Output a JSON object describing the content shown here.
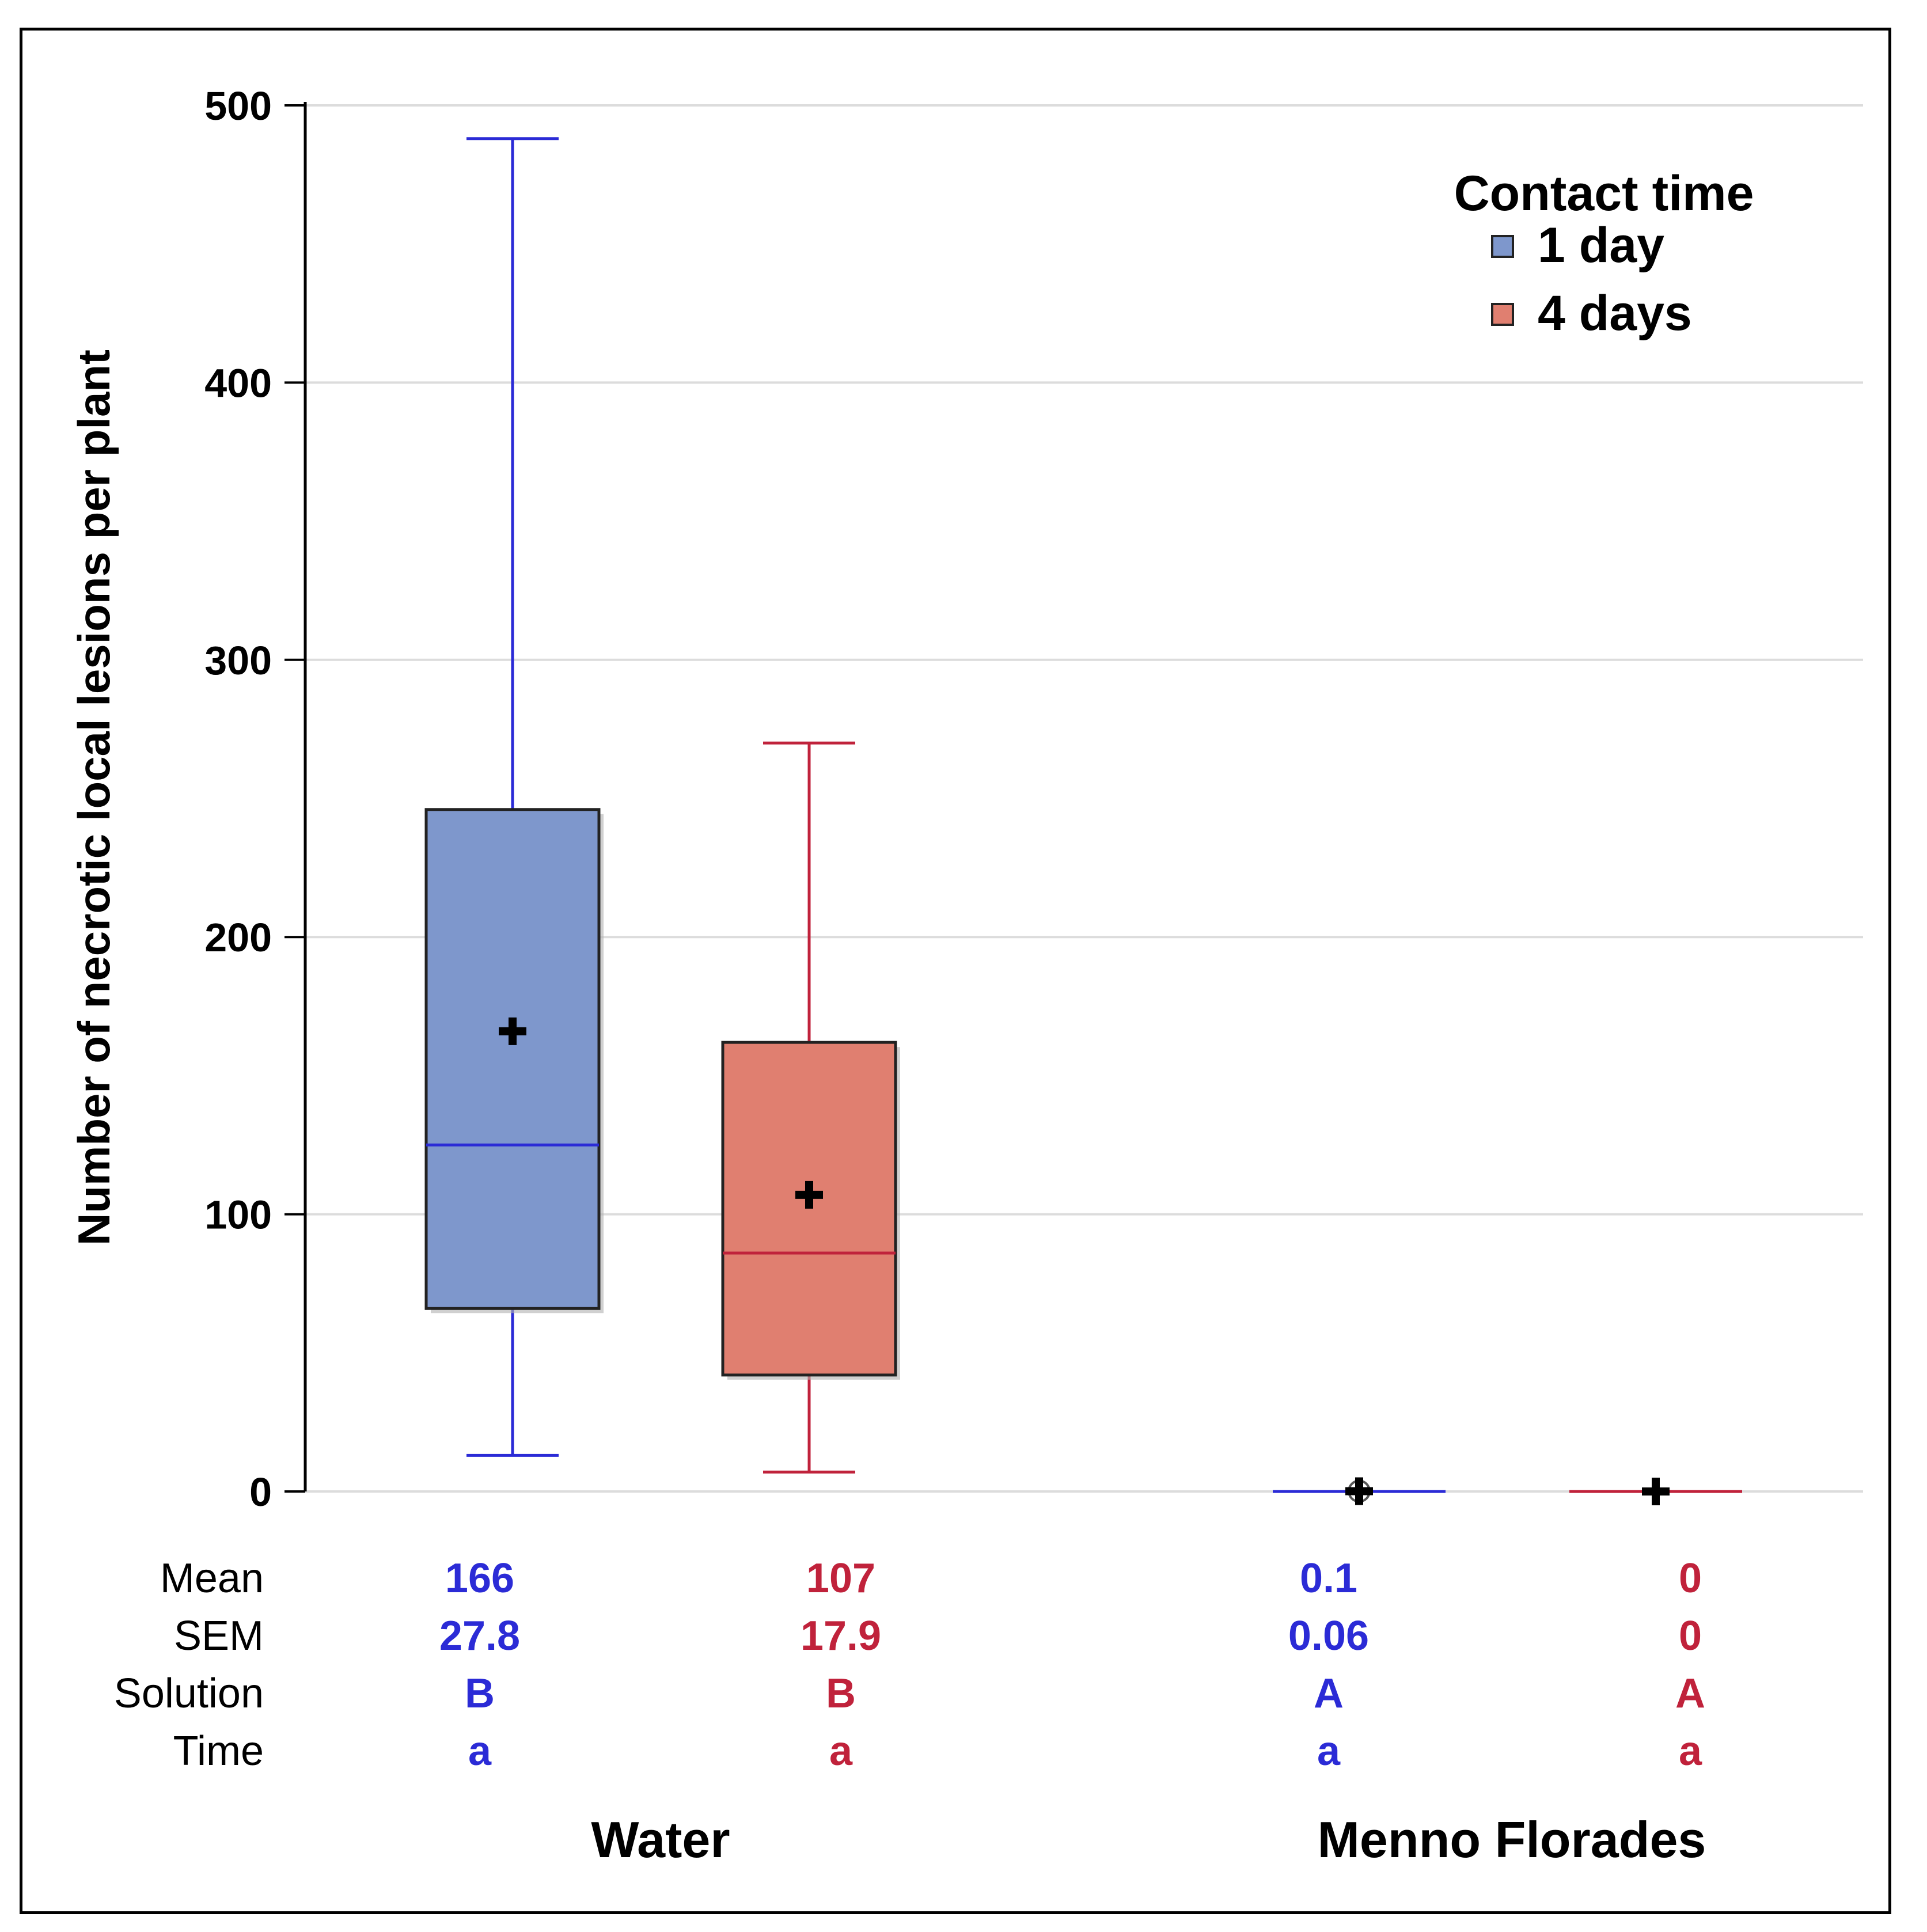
{
  "chart_data": {
    "type": "box",
    "ylabel": "Number of necrotic local lesions per plant",
    "ylim": [
      0,
      500
    ],
    "yticks": [
      0,
      100,
      200,
      300,
      400,
      500
    ],
    "grid": true,
    "groups": [
      "Water",
      "Menno Florades"
    ],
    "legend": {
      "title": "Contact time",
      "position": "top-right",
      "entries": [
        {
          "label": "1 day",
          "color": "#7e97cc"
        },
        {
          "label": "4 days",
          "color": "#e07f70"
        }
      ]
    },
    "series_colors": {
      "1 day": "#2b2bd6",
      "4 days": "#c0223b"
    },
    "boxes": [
      {
        "group": "Water",
        "series": "1 day",
        "min": 13,
        "q1": 66,
        "median": 125,
        "q3": 246,
        "max": 488,
        "mean": 166
      },
      {
        "group": "Water",
        "series": "4 days",
        "min": 7,
        "q1": 42,
        "median": 86,
        "q3": 162,
        "max": 270,
        "mean": 107
      },
      {
        "group": "Menno Florades",
        "series": "1 day",
        "min": 0,
        "q1": 0,
        "median": 0,
        "q3": 0,
        "max": 0,
        "mean": 0.1
      },
      {
        "group": "Menno Florades",
        "series": "4 days",
        "min": 0,
        "q1": 0,
        "median": 0,
        "q3": 0,
        "max": 0,
        "mean": 0
      }
    ],
    "stats_table": {
      "row_labels": [
        "Mean",
        "SEM",
        "Solution",
        "Time"
      ],
      "columns": [
        {
          "series": "1 day",
          "values": [
            "166",
            "27.8",
            "B",
            "a"
          ]
        },
        {
          "series": "4 days",
          "values": [
            "107",
            "17.9",
            "B",
            "a"
          ]
        },
        {
          "series": "1 day",
          "values": [
            "0.1",
            "0.06",
            "A",
            "a"
          ]
        },
        {
          "series": "4 days",
          "values": [
            "0",
            "0",
            "A",
            "a"
          ]
        }
      ]
    }
  }
}
